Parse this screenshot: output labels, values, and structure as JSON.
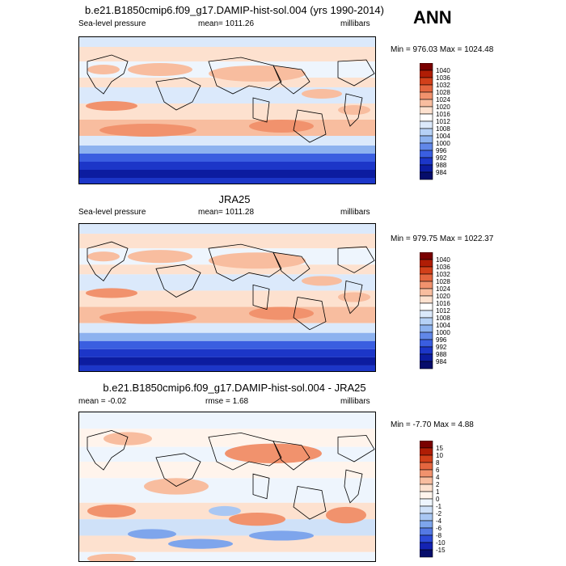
{
  "season": "ANN",
  "panels": [
    {
      "id": "model",
      "title": "b.e21.B1850cmip6.f09_g17.DAMIP-hist-sol.004 (yrs 1990-2014)",
      "left_label": "Sea-level pressure",
      "center_label": "mean= 1011.26",
      "right_label": "millibars",
      "minmax": "Min = 976.03 Max = 1024.48",
      "colorbar_labels": [
        "1040",
        "1036",
        "1032",
        "1028",
        "1024",
        "1020",
        "1016",
        "1012",
        "1008",
        "1004",
        "1000",
        "996",
        "992",
        "988",
        "984"
      ]
    },
    {
      "id": "obs",
      "title": "JRA25",
      "left_label": "Sea-level pressure",
      "center_label": "mean= 1011.28",
      "right_label": "millibars",
      "minmax": "Min = 979.75 Max = 1022.37",
      "colorbar_labels": [
        "1040",
        "1036",
        "1032",
        "1028",
        "1024",
        "1020",
        "1016",
        "1012",
        "1008",
        "1004",
        "1000",
        "996",
        "992",
        "988",
        "984"
      ]
    },
    {
      "id": "diff",
      "title": "b.e21.B1850cmip6.f09_g17.DAMIP-hist-sol.004 - JRA25",
      "left_label": "mean =  -0.02",
      "center_label": "rmse =  1.68",
      "right_label": "millibars",
      "minmax": "Min =  -7.70 Max =   4.88",
      "colorbar_labels": [
        "15",
        "10",
        "8",
        "6",
        "4",
        "2",
        "1",
        "0",
        "-1",
        "-2",
        "-4",
        "-6",
        "-8",
        "-10",
        "-15"
      ]
    }
  ],
  "colors": {
    "abs_scale": [
      "#7a0000",
      "#b01d05",
      "#d2401a",
      "#e4663f",
      "#f1926d",
      "#f8bd9f",
      "#fde1cf",
      "#ffffff",
      "#dbe9fb",
      "#b6d1f6",
      "#8db2ef",
      "#6187e8",
      "#3a5ee0",
      "#1c36c8",
      "#0c1ca0",
      "#060d6b"
    ],
    "diff_scale": [
      "#7a0000",
      "#b01d05",
      "#d2401a",
      "#e4663f",
      "#f1926d",
      "#f8bd9f",
      "#fde1cf",
      "#fff4ec",
      "#eef5fd",
      "#cfe1f8",
      "#a9c7f3",
      "#7ea5ec",
      "#5479e4",
      "#2c4ad8",
      "#1423b3",
      "#060d6b"
    ]
  }
}
